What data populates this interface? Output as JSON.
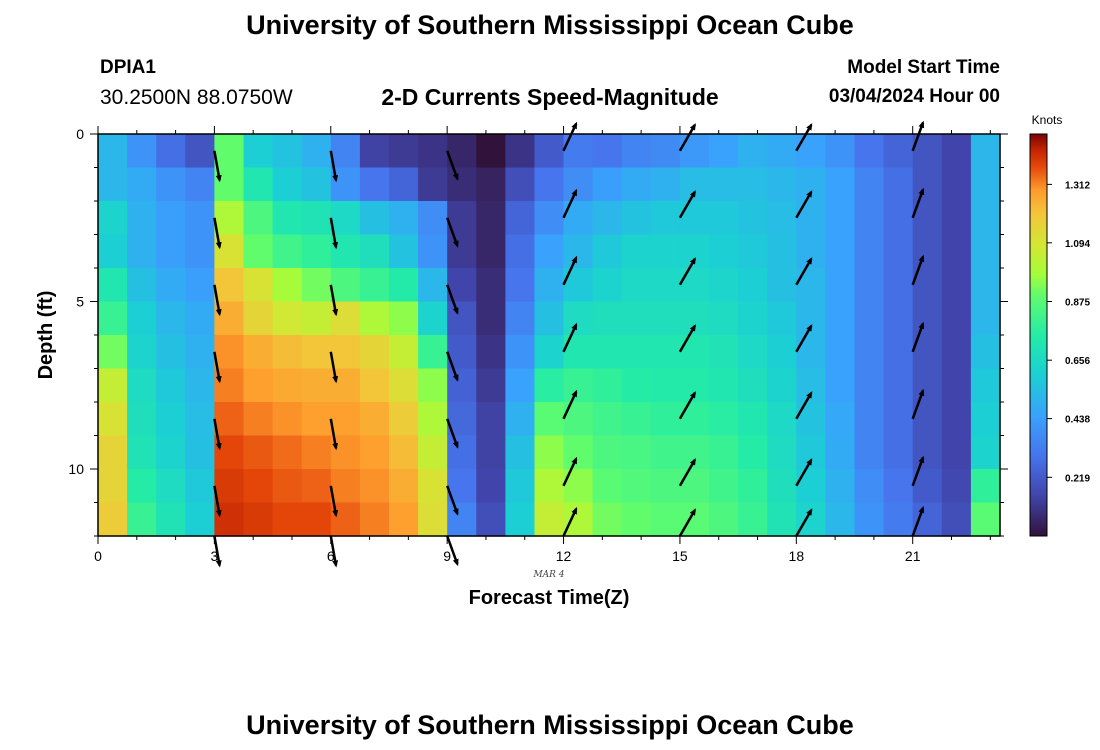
{
  "header": {
    "title": "University of Southern Mississippi Ocean Cube",
    "station": "DPIA1",
    "coords": "30.2500N  88.0750W",
    "subtitle": "2-D Currents Speed-Magnitude",
    "model_start_label": "Model Start Time",
    "model_start_value": "03/04/2024 Hour 00"
  },
  "footer": {
    "title": "University of Southern Mississippi Ocean Cube"
  },
  "chart_data": {
    "type": "heatmap",
    "xlabel": "Forecast Time(Z)",
    "ylabel": "Depth (ft)",
    "date_label": "MAR 4",
    "x_ticks": [
      "0",
      "3",
      "6",
      "9",
      "12",
      "15",
      "18",
      "21"
    ],
    "y_ticks": [
      "0",
      "5",
      "10"
    ],
    "xlim": [
      0,
      23.25
    ],
    "ylim": [
      0,
      12
    ],
    "colorbar": {
      "title": "Knots",
      "ticks": [
        "0.219",
        "0.438",
        "0.656",
        "0.875",
        "1.094",
        "1.312"
      ],
      "range": [
        0,
        1.5
      ]
    },
    "x_hours": [
      0,
      0.75,
      1.5,
      2.25,
      3,
      3.75,
      4.5,
      5.25,
      6,
      6.75,
      7.5,
      8.25,
      9,
      9.75,
      10.5,
      11.25,
      12,
      12.75,
      13.5,
      14.25,
      15,
      15.75,
      16.5,
      17.25,
      18,
      18.75,
      19.5,
      20.25,
      21,
      21.75,
      22.5
    ],
    "depths": [
      0.5,
      1.5,
      2.5,
      3.5,
      4.5,
      5.5,
      6.5,
      7.5,
      8.5,
      9.5,
      10.5,
      11.5
    ],
    "speeds": [
      [
        0.52,
        0.4,
        0.28,
        0.2,
        0.9,
        0.6,
        0.56,
        0.5,
        0.35,
        0.14,
        0.12,
        0.1,
        0.06,
        0.0,
        0.1,
        0.22,
        0.32,
        0.3,
        0.35,
        0.37,
        0.42,
        0.45,
        0.5,
        0.48,
        0.45,
        0.4,
        0.3,
        0.25,
        0.2,
        0.15,
        0.52
      ],
      [
        0.52,
        0.48,
        0.4,
        0.35,
        0.9,
        0.72,
        0.6,
        0.56,
        0.4,
        0.3,
        0.25,
        0.12,
        0.08,
        0.05,
        0.18,
        0.3,
        0.38,
        0.44,
        0.48,
        0.5,
        0.54,
        0.54,
        0.54,
        0.52,
        0.5,
        0.45,
        0.35,
        0.28,
        0.2,
        0.15,
        0.52
      ],
      [
        0.62,
        0.5,
        0.44,
        0.4,
        1.0,
        0.85,
        0.72,
        0.7,
        0.65,
        0.55,
        0.5,
        0.38,
        0.12,
        0.06,
        0.25,
        0.38,
        0.48,
        0.52,
        0.56,
        0.58,
        0.58,
        0.58,
        0.56,
        0.54,
        0.5,
        0.45,
        0.35,
        0.28,
        0.2,
        0.15,
        0.52
      ],
      [
        0.6,
        0.5,
        0.44,
        0.4,
        1.1,
        0.9,
        0.82,
        0.78,
        0.72,
        0.68,
        0.56,
        0.4,
        0.12,
        0.06,
        0.28,
        0.45,
        0.52,
        0.58,
        0.62,
        0.62,
        0.62,
        0.6,
        0.58,
        0.55,
        0.5,
        0.45,
        0.35,
        0.28,
        0.2,
        0.15,
        0.52
      ],
      [
        0.72,
        0.55,
        0.48,
        0.44,
        1.2,
        1.1,
        0.98,
        0.92,
        0.85,
        0.8,
        0.74,
        0.52,
        0.15,
        0.08,
        0.3,
        0.5,
        0.58,
        0.62,
        0.65,
        0.65,
        0.65,
        0.63,
        0.6,
        0.55,
        0.52,
        0.45,
        0.35,
        0.28,
        0.2,
        0.15,
        0.52
      ],
      [
        0.8,
        0.6,
        0.52,
        0.48,
        1.25,
        1.15,
        1.08,
        1.05,
        1.12,
        1.0,
        0.95,
        0.62,
        0.2,
        0.08,
        0.35,
        0.55,
        0.66,
        0.68,
        0.68,
        0.68,
        0.68,
        0.66,
        0.62,
        0.58,
        0.52,
        0.45,
        0.35,
        0.28,
        0.2,
        0.15,
        0.52
      ],
      [
        0.92,
        0.62,
        0.55,
        0.5,
        1.3,
        1.25,
        1.22,
        1.2,
        1.2,
        1.15,
        1.05,
        0.8,
        0.22,
        0.1,
        0.4,
        0.62,
        0.72,
        0.72,
        0.72,
        0.72,
        0.72,
        0.7,
        0.65,
        0.6,
        0.52,
        0.45,
        0.35,
        0.28,
        0.2,
        0.15,
        0.55
      ],
      [
        1.05,
        0.66,
        0.58,
        0.52,
        1.32,
        1.28,
        1.26,
        1.25,
        1.25,
        1.2,
        1.12,
        0.95,
        0.24,
        0.12,
        0.45,
        0.76,
        0.8,
        0.78,
        0.75,
        0.74,
        0.74,
        0.72,
        0.68,
        0.62,
        0.54,
        0.45,
        0.35,
        0.28,
        0.2,
        0.15,
        0.58
      ],
      [
        1.1,
        0.68,
        0.6,
        0.54,
        1.35,
        1.32,
        1.3,
        1.28,
        1.28,
        1.25,
        1.18,
        1.0,
        0.26,
        0.14,
        0.5,
        0.88,
        0.85,
        0.82,
        0.8,
        0.78,
        0.78,
        0.76,
        0.72,
        0.65,
        0.56,
        0.47,
        0.35,
        0.28,
        0.2,
        0.15,
        0.6
      ],
      [
        1.15,
        0.7,
        0.62,
        0.55,
        1.38,
        1.36,
        1.34,
        1.32,
        1.3,
        1.28,
        1.22,
        1.05,
        0.28,
        0.14,
        0.55,
        0.95,
        0.9,
        0.85,
        0.84,
        0.82,
        0.82,
        0.8,
        0.75,
        0.66,
        0.58,
        0.48,
        0.35,
        0.28,
        0.2,
        0.15,
        0.62
      ],
      [
        1.15,
        0.75,
        0.66,
        0.58,
        1.4,
        1.38,
        1.36,
        1.35,
        1.32,
        1.3,
        1.25,
        1.1,
        0.3,
        0.15,
        0.58,
        1.0,
        0.95,
        0.88,
        0.86,
        0.85,
        0.85,
        0.82,
        0.78,
        0.68,
        0.6,
        0.5,
        0.38,
        0.3,
        0.22,
        0.16,
        0.78
      ],
      [
        1.18,
        0.8,
        0.7,
        0.6,
        1.42,
        1.4,
        1.38,
        1.38,
        1.35,
        1.32,
        1.28,
        1.12,
        0.35,
        0.18,
        0.6,
        1.05,
        1.0,
        0.92,
        0.9,
        0.88,
        0.88,
        0.85,
        0.8,
        0.7,
        0.62,
        0.52,
        0.4,
        0.32,
        0.25,
        0.18,
        0.88
      ]
    ],
    "vector_times": [
      3,
      6,
      9,
      12,
      15,
      18,
      21
    ],
    "vector_depths": [
      0.5,
      2.5,
      4.5,
      6.5,
      8.5,
      10.5,
      12
    ],
    "vector_directions_deg": [
      170,
      170,
      160,
      25,
      30,
      30,
      20
    ]
  }
}
